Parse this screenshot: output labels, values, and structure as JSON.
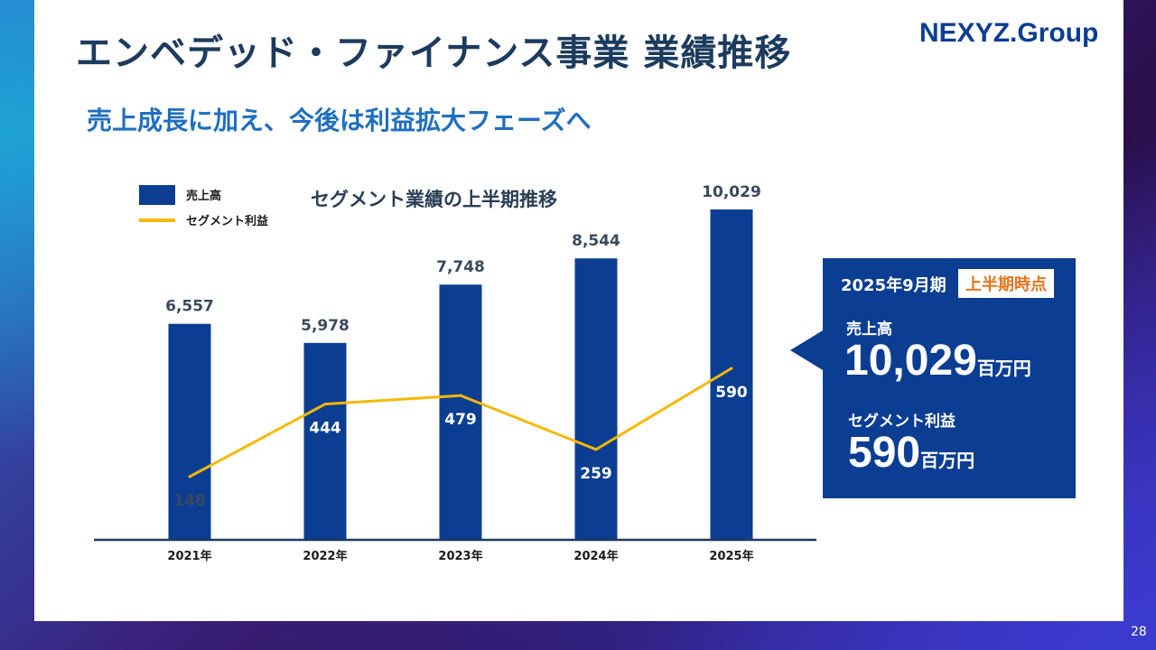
{
  "header": {
    "title": "エンベデッド・ファイナンス事業 業績推移",
    "subtitle": "売上成長に加え、今後は利益拡大フェーズへ",
    "logo": "NEXYZ.Group"
  },
  "chart_data": {
    "type": "bar",
    "title": "セグメント業績の上半期推移",
    "categories": [
      "2021年",
      "2022年",
      "2023年",
      "2024年",
      "2025年"
    ],
    "ylim": [
      0,
      10500
    ],
    "series": [
      {
        "name": "売上高",
        "kind": "bar",
        "values": [
          6557,
          5978,
          7748,
          8544,
          10029
        ],
        "labels": [
          "6,557",
          "5,978",
          "7,748",
          "8,544",
          "10,029"
        ],
        "color": "#0b3e93"
      },
      {
        "name": "セグメント利益",
        "kind": "line",
        "values": [
          148,
          444,
          479,
          259,
          590
        ],
        "labels": [
          "148",
          "444",
          "479",
          "259",
          "590"
        ],
        "color": "#f5b800"
      }
    ],
    "legend_position": "top-left",
    "grid": false
  },
  "callout": {
    "period": "2025年9月期",
    "badge": "上半期時点",
    "sales_label": "売上高",
    "sales_value": "10,029",
    "sales_unit": "百万円",
    "profit_label": "セグメント利益",
    "profit_value": "590",
    "profit_unit": "百万円"
  },
  "page_number": "28",
  "colors": {
    "accent": "#0b3e93",
    "line": "#f5b800",
    "badge_text": "#e8731e"
  }
}
